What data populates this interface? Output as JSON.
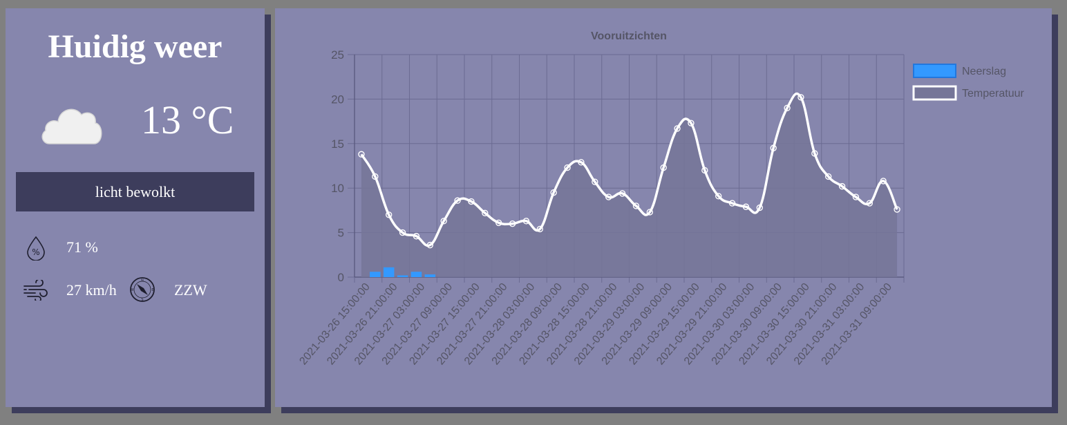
{
  "current": {
    "title": "Huidig weer",
    "temperature": "13 °C",
    "description": "licht bewolkt",
    "humidity": "71 %",
    "wind_speed": "27 km/h",
    "wind_direction": "ZZW",
    "icons": {
      "weather": "cloud-icon",
      "humidity": "humidity-drop-icon",
      "wind": "wind-icon",
      "compass": "compass-icon"
    }
  },
  "colors": {
    "panel": "#8686ad",
    "shadow": "#3d3d5c",
    "precipitation": "#3399ff",
    "temperature_line": "#ffffff",
    "area_fill": "#757598"
  },
  "chart_data": {
    "type": "line",
    "title": "Vooruitzichten",
    "xlabel": "",
    "ylabel": "",
    "ylim": [
      0,
      25
    ],
    "yticks": [
      0,
      5,
      10,
      15,
      20,
      25
    ],
    "grid": true,
    "legend_position": "right",
    "x_tick_labels": [
      "2021-03-26 15:00:00",
      "2021-03-26 21:00:00",
      "2021-03-27 03:00:00",
      "2021-03-27 09:00:00",
      "2021-03-27 15:00:00",
      "2021-03-27 21:00:00",
      "2021-03-28 03:00:00",
      "2021-03-28 09:00:00",
      "2021-03-28 15:00:00",
      "2021-03-28 21:00:00",
      "2021-03-29 03:00:00",
      "2021-03-29 09:00:00",
      "2021-03-29 15:00:00",
      "2021-03-29 21:00:00",
      "2021-03-30 03:00:00",
      "2021-03-30 09:00:00",
      "2021-03-30 15:00:00",
      "2021-03-30 21:00:00",
      "2021-03-31 03:00:00",
      "2021-03-31 09:00:00"
    ],
    "series": [
      {
        "name": "Neerslag",
        "type": "bar",
        "values": [
          0,
          0.6,
          1.1,
          0.2,
          0.6,
          0.3,
          0,
          0,
          0,
          0,
          0,
          0,
          0,
          0,
          0,
          0,
          0,
          0,
          0,
          0,
          0,
          0,
          0,
          0,
          0,
          0,
          0,
          0,
          0,
          0,
          0,
          0,
          0,
          0,
          0,
          0,
          0,
          0,
          0,
          0
        ]
      },
      {
        "name": "Temperatuur",
        "type": "line",
        "fill": true,
        "values": [
          13.8,
          11.3,
          7.0,
          5.0,
          4.6,
          3.6,
          6.3,
          8.6,
          8.5,
          7.2,
          6.1,
          6.0,
          6.3,
          5.4,
          9.5,
          12.3,
          12.9,
          10.7,
          9.0,
          9.4,
          8.0,
          7.3,
          12.3,
          16.7,
          17.3,
          12.0,
          9.1,
          8.3,
          7.9,
          7.8,
          14.5,
          19.0,
          20.2,
          13.9,
          11.3,
          10.2,
          9.0,
          8.3,
          10.8,
          7.6
        ]
      }
    ]
  }
}
